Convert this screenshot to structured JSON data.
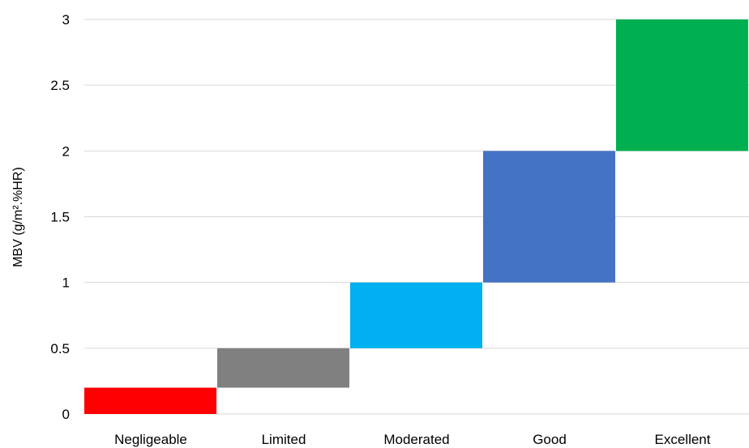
{
  "chart_data": {
    "type": "bar",
    "subtype": "floating",
    "title": "",
    "xlabel": "",
    "ylabel": "MBV (g/m².%HR)",
    "ylim": [
      0,
      3
    ],
    "yticks": [
      {
        "value": 0,
        "label": "0"
      },
      {
        "value": 0.5,
        "label": "0.5"
      },
      {
        "value": 1,
        "label": "1"
      },
      {
        "value": 1.5,
        "label": "1.5"
      },
      {
        "value": 2,
        "label": "2"
      },
      {
        "value": 2.5,
        "label": "2.5"
      },
      {
        "value": 3,
        "label": "3"
      }
    ],
    "grid": true,
    "legend": "none",
    "categories": [
      "Negligeable",
      "Limited",
      "Moderated",
      "Good",
      "Excellent"
    ],
    "ranges": [
      {
        "low": 0,
        "high": 0.2
      },
      {
        "low": 0.2,
        "high": 0.5
      },
      {
        "low": 0.5,
        "high": 1
      },
      {
        "low": 1,
        "high": 2
      },
      {
        "low": 2,
        "high": 3
      }
    ],
    "colors": [
      "#ff0000",
      "#808080",
      "#00b0f0",
      "#4472c4",
      "#00b050"
    ]
  }
}
